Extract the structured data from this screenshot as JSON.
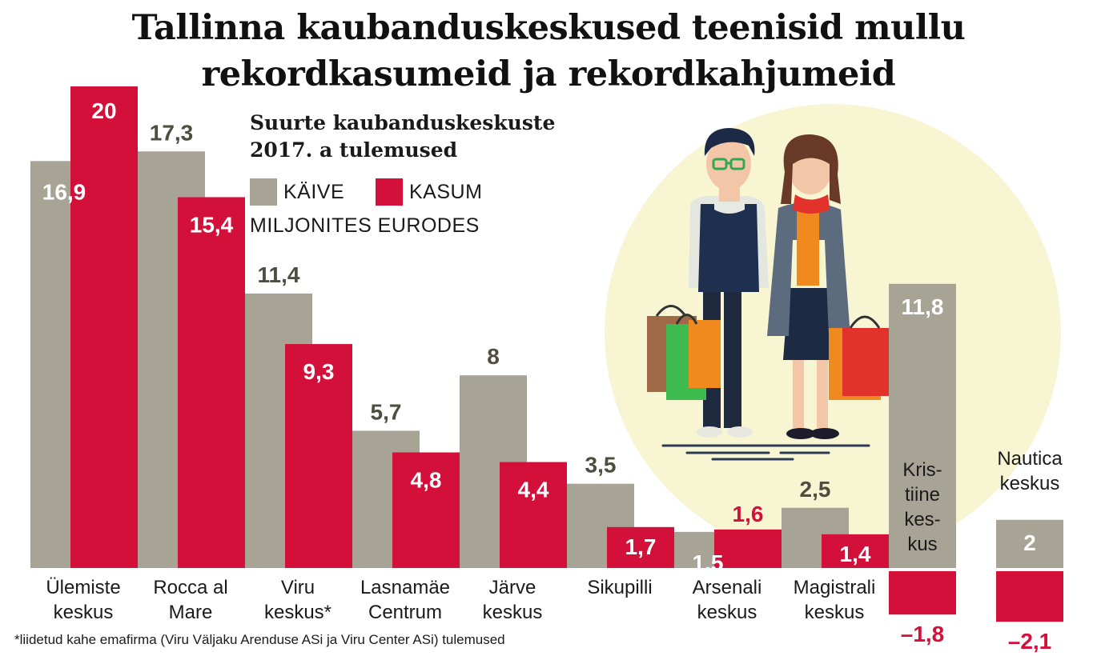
{
  "chart_data": {
    "type": "bar",
    "title": [
      "Tallinna kaubanduskeskused teenisid mullu",
      "rekordkasumeid ja rekordkahjumeid"
    ],
    "subtitle": [
      "Suurte kaubanduskeskuste",
      "2017. a tulemused"
    ],
    "unit": "MILJONITES EURODES",
    "legend_position": "top-left",
    "grid": false,
    "ylim": [
      -2.5,
      21
    ],
    "categories": [
      [
        "Ülemiste",
        "keskus"
      ],
      [
        "Rocca al",
        "Mare"
      ],
      [
        "Viru",
        "keskus*"
      ],
      [
        "Lasnamäe",
        "Centrum"
      ],
      [
        "Järve",
        "keskus"
      ],
      [
        "Sikupilli"
      ],
      [
        "Arsenali",
        "keskus"
      ],
      [
        "Magistrali",
        "keskus"
      ],
      [
        "Kris-",
        "tiine",
        "kes-",
        "kus"
      ],
      [
        "Nautica",
        "keskus"
      ]
    ],
    "series": [
      {
        "name": "KÄIVE",
        "color": "#a7a496",
        "values": [
          16.9,
          17.3,
          11.4,
          5.7,
          8,
          3.5,
          1.5,
          2.5,
          11.8,
          2
        ],
        "labels": [
          "16,9",
          "17,3",
          "11,4",
          "5,7",
          "8",
          "3,5",
          "1,5",
          "2,5",
          "11,8",
          "2"
        ]
      },
      {
        "name": "KASUM",
        "color": "#d2103a",
        "values": [
          20,
          15.4,
          9.3,
          4.8,
          4.4,
          1.7,
          1.6,
          1.4,
          -1.8,
          -2.1
        ],
        "labels": [
          "20",
          "15,4",
          "9,3",
          "4,8",
          "4,4",
          "1,7",
          "1,6",
          "1,4",
          "–1,8",
          "–2,1"
        ]
      }
    ],
    "footnote": "*liidetud kahe emafirma (Viru Väljaku Arenduse ASi ja Viru Center ASi) tulemused"
  }
}
